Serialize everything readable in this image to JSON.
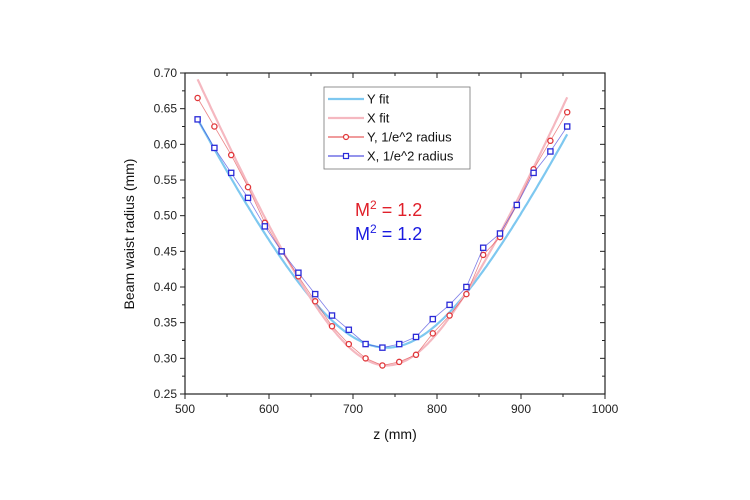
{
  "chart_data": {
    "type": "line",
    "title": "",
    "xlabel": "z (mm)",
    "ylabel": "Beam waist radius (mm)",
    "xlim": [
      500,
      1000
    ],
    "ylim": [
      0.25,
      0.7
    ],
    "xticks": [
      500,
      600,
      700,
      800,
      900,
      1000
    ],
    "xtick_labels": [
      "500",
      "600",
      "700",
      "800",
      "900",
      "1000"
    ],
    "yticks": [
      0.25,
      0.3,
      0.35,
      0.4,
      0.45,
      0.5,
      0.55,
      0.6,
      0.65,
      0.7
    ],
    "ytick_labels": [
      "0.25",
      "0.30",
      "0.35",
      "0.40",
      "0.45",
      "0.50",
      "0.55",
      "0.60",
      "0.65",
      "0.70"
    ],
    "grid": false,
    "legend_position": "top-center",
    "x": [
      515,
      535,
      555,
      575,
      595,
      615,
      635,
      655,
      675,
      695,
      715,
      735,
      755,
      775,
      795,
      815,
      835,
      855,
      875,
      895,
      915,
      935,
      955
    ],
    "series": [
      {
        "name": "Y fit",
        "kind": "fit",
        "color": "#7ec8f0",
        "model": "gaussian-beam",
        "w0": 0.315,
        "z0": 740,
        "zR": 128.5,
        "fit_x": [
          515,
          955
        ]
      },
      {
        "name": "X fit",
        "kind": "fit",
        "color": "#f5b8c0",
        "model": "gaussian-beam",
        "w0": 0.29,
        "z0": 740,
        "zR": 104,
        "fit_x": [
          515,
          955
        ]
      },
      {
        "name": "Y, 1/e^2 radius",
        "kind": "data",
        "color": "#e0373a",
        "marker": "circle",
        "values": [
          0.665,
          0.625,
          0.585,
          0.54,
          0.49,
          0.45,
          0.415,
          0.38,
          0.345,
          0.32,
          0.3,
          0.29,
          0.295,
          0.305,
          0.335,
          0.36,
          0.39,
          0.445,
          0.47,
          0.515,
          0.565,
          0.605,
          0.645
        ]
      },
      {
        "name": "X, 1/e^2 radius",
        "kind": "data",
        "color": "#2a2ad8",
        "marker": "square",
        "values": [
          0.635,
          0.595,
          0.56,
          0.525,
          0.485,
          0.45,
          0.42,
          0.39,
          0.36,
          0.34,
          0.32,
          0.315,
          0.32,
          0.33,
          0.355,
          0.375,
          0.4,
          0.455,
          0.475,
          0.515,
          0.56,
          0.59,
          0.625
        ]
      }
    ],
    "annotations": [
      {
        "text_main": "M",
        "text_sup": "2",
        "text_rest": " = 1.2",
        "color": "#e0202a"
      },
      {
        "text_main": "M",
        "text_sup": "2",
        "text_rest": " = 1.2",
        "color": "#1a1ae0"
      }
    ]
  }
}
